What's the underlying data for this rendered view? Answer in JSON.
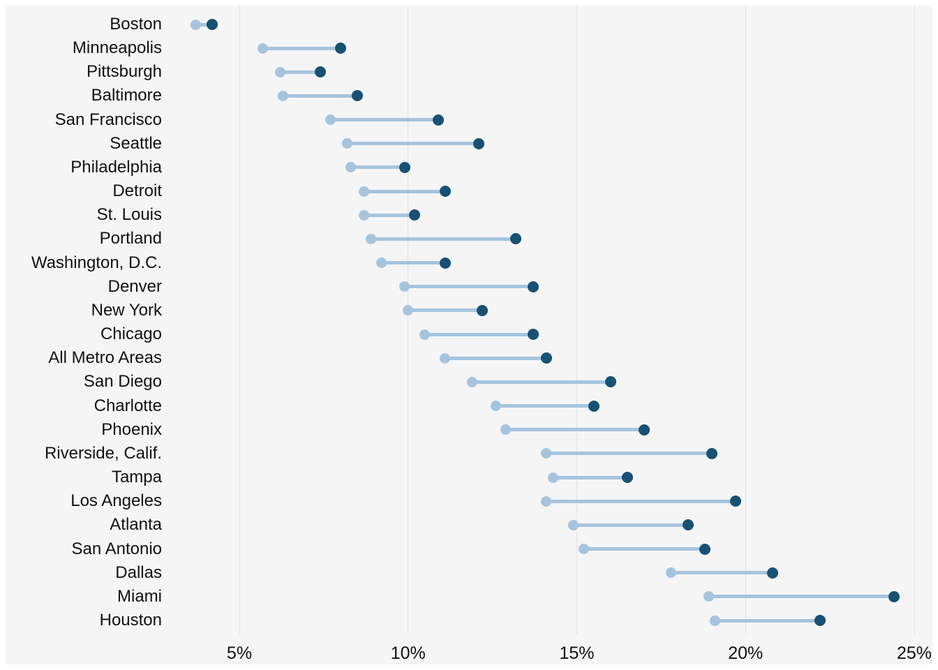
{
  "chart_data": {
    "type": "dumbbell",
    "orientation": "horizontal",
    "title": "",
    "xlabel": "",
    "ylabel": "",
    "grid": "vertical-only",
    "legend": "none",
    "x_axis": {
      "unit": "%",
      "min": 2.7,
      "max": 25.7,
      "ticks": [
        5,
        10,
        15,
        20,
        25
      ],
      "tick_labels": [
        "5%",
        "10%",
        "15%",
        "20%",
        "25%"
      ]
    },
    "series_colors": {
      "light_blue": "#a6c4de",
      "dark_blue": "#185173"
    },
    "rows": [
      {
        "label": "Boston",
        "light": 3.7,
        "dark": 4.2
      },
      {
        "label": "Minneapolis",
        "light": 5.7,
        "dark": 8.0
      },
      {
        "label": "Pittsburgh",
        "light": 6.2,
        "dark": 7.4
      },
      {
        "label": "Baltimore",
        "light": 6.3,
        "dark": 8.5
      },
      {
        "label": "San Francisco",
        "light": 7.7,
        "dark": 10.9
      },
      {
        "label": "Seattle",
        "light": 8.2,
        "dark": 12.1
      },
      {
        "label": "Philadelphia",
        "light": 8.3,
        "dark": 9.9
      },
      {
        "label": "Detroit",
        "light": 8.7,
        "dark": 11.1
      },
      {
        "label": "St. Louis",
        "light": 8.7,
        "dark": 10.2
      },
      {
        "label": "Portland",
        "light": 8.9,
        "dark": 13.2
      },
      {
        "label": "Washington, D.C.",
        "light": 9.2,
        "dark": 11.1
      },
      {
        "label": "Denver",
        "light": 9.9,
        "dark": 13.7
      },
      {
        "label": "New York",
        "light": 10.0,
        "dark": 12.2
      },
      {
        "label": "Chicago",
        "light": 10.5,
        "dark": 13.7
      },
      {
        "label": "All Metro Areas",
        "light": 11.1,
        "dark": 14.1
      },
      {
        "label": "San Diego",
        "light": 11.9,
        "dark": 16.0
      },
      {
        "label": "Charlotte",
        "light": 12.6,
        "dark": 15.5
      },
      {
        "label": "Phoenix",
        "light": 12.9,
        "dark": 17.0
      },
      {
        "label": "Riverside, Calif.",
        "light": 14.1,
        "dark": 19.0
      },
      {
        "label": "Tampa",
        "light": 14.3,
        "dark": 16.5
      },
      {
        "label": "Los Angeles",
        "light": 14.1,
        "dark": 19.7
      },
      {
        "label": "Atlanta",
        "light": 14.9,
        "dark": 18.3
      },
      {
        "label": "San Antonio",
        "light": 15.2,
        "dark": 18.8
      },
      {
        "label": "Dallas",
        "light": 17.8,
        "dark": 20.8
      },
      {
        "label": "Miami",
        "light": 18.9,
        "dark": 24.4
      },
      {
        "label": "Houston",
        "light": 19.1,
        "dark": 22.2
      }
    ]
  }
}
